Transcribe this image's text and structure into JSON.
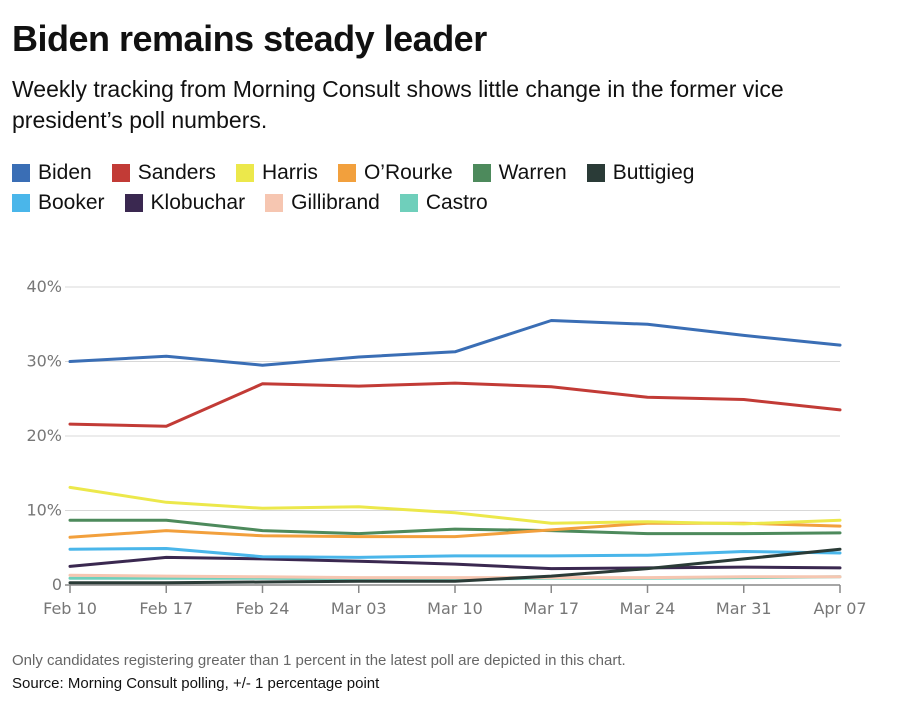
{
  "header": {
    "title": "Biden remains steady leader",
    "subtitle": "Weekly tracking from Morning Consult shows little change in the former vice president’s poll numbers."
  },
  "footer": {
    "note": "Only candidates registering greater than 1 percent in the latest poll are depicted in this chart.",
    "source": "Source: Morning Consult polling, +/- 1 percentage point"
  },
  "chart_data": {
    "type": "line",
    "title": "Biden remains steady leader",
    "xlabel": "",
    "ylabel": "",
    "categories": [
      "Feb 10",
      "Feb 17",
      "Feb 24",
      "Mar 03",
      "Mar 10",
      "Mar 17",
      "Mar 24",
      "Mar 31",
      "Apr 07"
    ],
    "y_ticks": [
      "0",
      "10%",
      "20%",
      "30%",
      "40%"
    ],
    "ylim": [
      0,
      40
    ],
    "grid": true,
    "legend_position": "top",
    "series": [
      {
        "name": "Biden",
        "color": "#3a6eb5",
        "values": [
          30,
          30.7,
          29.5,
          30.6,
          31.3,
          35.5,
          35,
          33.5,
          32.2
        ]
      },
      {
        "name": "Sanders",
        "color": "#c23b36",
        "values": [
          21.6,
          21.3,
          27,
          26.7,
          27.1,
          26.6,
          25.2,
          24.9,
          23.5
        ]
      },
      {
        "name": "Harris",
        "color": "#ece84b",
        "values": [
          13.1,
          11.1,
          10.3,
          10.5,
          9.7,
          8.3,
          8.5,
          8.2,
          8.7
        ]
      },
      {
        "name": "O’Rourke",
        "color": "#f2a03d",
        "values": [
          6.4,
          7.3,
          6.6,
          6.5,
          6.5,
          7.4,
          8.3,
          8.3,
          7.9
        ]
      },
      {
        "name": "Warren",
        "color": "#4d8a5c",
        "values": [
          8.7,
          8.7,
          7.3,
          6.9,
          7.5,
          7.3,
          6.9,
          6.9,
          7
        ]
      },
      {
        "name": "Buttigieg",
        "color": "#2a3b37",
        "values": [
          0.3,
          0.3,
          0.4,
          0.5,
          0.5,
          1.2,
          2.2,
          3.5,
          4.8
        ]
      },
      {
        "name": "Booker",
        "color": "#4ab6ea",
        "values": [
          4.8,
          4.9,
          3.8,
          3.7,
          3.9,
          3.9,
          4,
          4.5,
          4.3
        ]
      },
      {
        "name": "Klobuchar",
        "color": "#3a2850",
        "values": [
          2.5,
          3.7,
          3.5,
          3.2,
          2.8,
          2.2,
          2.3,
          2.4,
          2.3
        ]
      },
      {
        "name": "Gillibrand",
        "color": "#f6c6b1",
        "values": [
          1.3,
          1.2,
          1.1,
          1,
          1,
          1,
          1,
          1.1,
          1.1
        ]
      },
      {
        "name": "Castro",
        "color": "#6fcfbb",
        "values": [
          0.9,
          0.9,
          0.9,
          0.8,
          0.8,
          0.9,
          0.9,
          1,
          1.1
        ]
      }
    ]
  }
}
